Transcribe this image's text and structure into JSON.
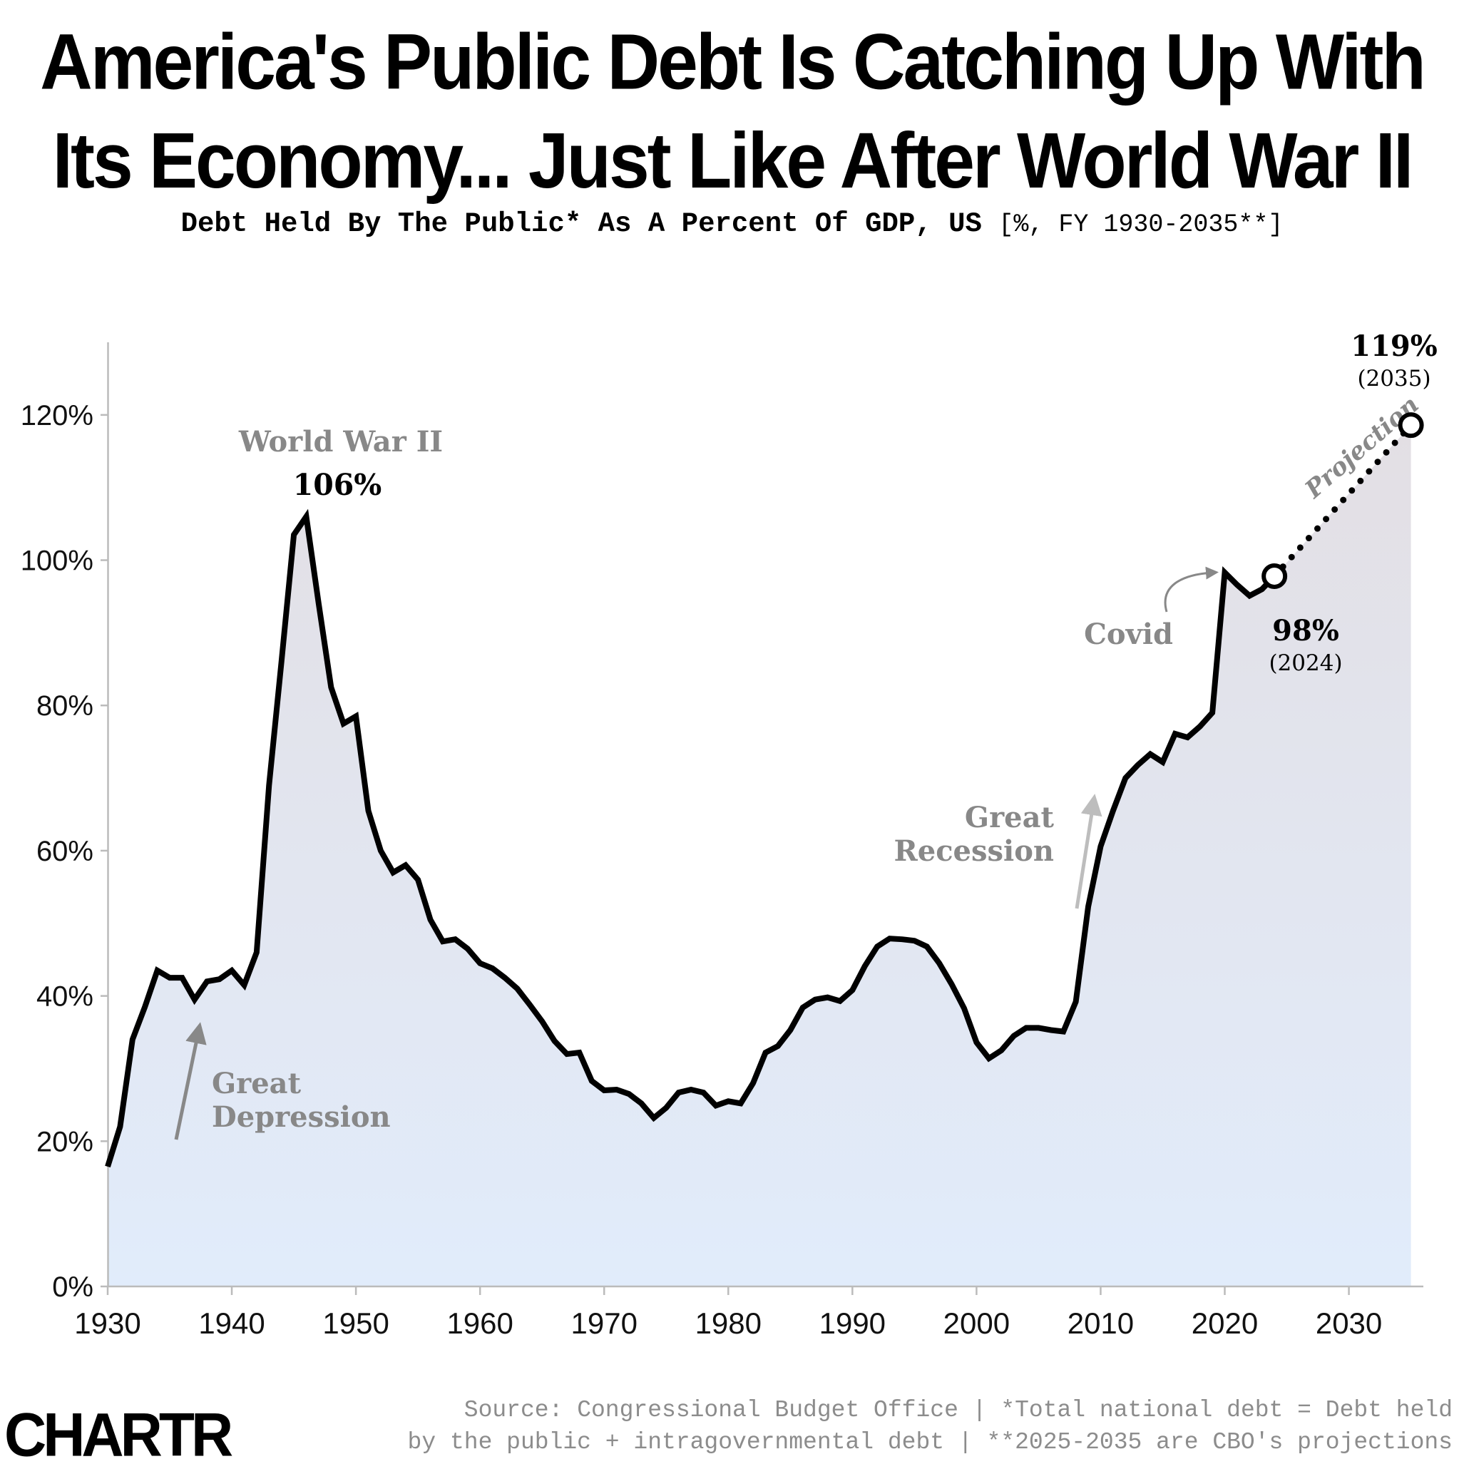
{
  "title_line1": "America's Public Debt Is Catching Up With",
  "title_line2": "Its Economy... Just Like After World War II",
  "subtitle_main": "Debt Held By The Public* As A Percent Of GDP, US",
  "subtitle_unit": "[%, FY 1930-2035**]",
  "source_line1": "Source: Congressional Budget Office | *Total national debt = Debt held",
  "source_line2": "by the public + intragovernmental debt | **2025-2035 are CBO's projections",
  "logo": "CHARTR",
  "colors": {
    "line": "#000000",
    "annotation": "#888888",
    "arrow_light": "#bdbdbd",
    "fill_top": "#e3dfe4",
    "fill_bottom": "#e1ecfb",
    "axis": "#bbbbbb"
  },
  "chart_data": {
    "type": "line",
    "title": "America's Public Debt Is Catching Up With Its Economy... Just Like After World War II",
    "subtitle": "Debt Held By The Public* As A Percent Of GDP, US [%, FY 1930-2035**]",
    "xlim": [
      1930,
      2036
    ],
    "ylim": [
      0,
      130
    ],
    "x_ticks": [
      1930,
      1940,
      1950,
      1960,
      1970,
      1980,
      1990,
      2000,
      2010,
      2020,
      2030
    ],
    "y_ticks": [
      0,
      20,
      40,
      60,
      80,
      100,
      120
    ],
    "y_tick_labels": [
      "0%",
      "20%",
      "40%",
      "60%",
      "80%",
      "100%",
      "120%"
    ],
    "grid": false,
    "series": [
      {
        "style": "solid",
        "x": [
          1930,
          1931,
          1932,
          1933,
          1934,
          1935,
          1936,
          1937,
          1938,
          1939,
          1940,
          1941,
          1942,
          1943,
          1944,
          1945,
          1946,
          1947,
          1948,
          1949,
          1950,
          1951,
          1952,
          1953,
          1954,
          1955,
          1956,
          1957,
          1958,
          1959,
          1960,
          1961,
          1962,
          1963,
          1964,
          1965,
          1966,
          1967,
          1968,
          1969,
          1970,
          1971,
          1972,
          1973,
          1974,
          1975,
          1976,
          1977,
          1978,
          1979,
          1980,
          1981,
          1982,
          1983,
          1984,
          1985,
          1986,
          1987,
          1988,
          1989,
          1990,
          1991,
          1992,
          1993,
          1994,
          1995,
          1996,
          1997,
          1998,
          1999,
          2000,
          2001,
          2002,
          2003,
          2004,
          2005,
          2006,
          2007,
          2008,
          2009,
          2010,
          2011,
          2012,
          2013,
          2014,
          2015,
          2016,
          2017,
          2018,
          2019,
          2020,
          2021,
          2022,
          2023,
          2024
        ],
        "values": [
          16.5,
          22,
          34,
          38.5,
          43.5,
          42.5,
          42.5,
          39.5,
          42,
          42.3,
          43.5,
          41.5,
          46,
          69,
          86,
          103.5,
          106,
          94,
          82.5,
          77.5,
          78.5,
          65.5,
          60,
          57,
          58,
          56,
          50.5,
          47.5,
          47.8,
          46.5,
          44.5,
          43.8,
          42.5,
          41,
          38.8,
          36.5,
          33.8,
          32,
          32.2,
          28.3,
          27,
          27.1,
          26.5,
          25.2,
          23.2,
          24.6,
          26.7,
          27.1,
          26.7,
          24.9,
          25.5,
          25.2,
          28,
          32.2,
          33.1,
          35.3,
          38.4,
          39.5,
          39.8,
          39.3,
          40.8,
          44.1,
          46.8,
          47.9,
          47.8,
          47.6,
          46.8,
          44.5,
          41.6,
          38.3,
          33.6,
          31.4,
          32.5,
          34.5,
          35.6,
          35.6,
          35.3,
          35.1,
          39.2,
          52.3,
          60.6,
          65.5,
          70,
          71.8,
          73.3,
          72.2,
          76.1,
          75.6,
          77.1,
          79,
          98.3,
          96.6,
          95.1,
          96,
          97.8
        ]
      },
      {
        "style": "dotted",
        "name": "Projection",
        "x": [
          2024,
          2035
        ],
        "values": [
          97.8,
          118.6
        ]
      }
    ],
    "annotations": [
      {
        "text": "World War II",
        "x": 1946,
        "y": 106
      },
      {
        "text": "106%",
        "x": 1946,
        "y": 106
      },
      {
        "text": "Great Depression",
        "x": 1933,
        "y": 20
      },
      {
        "text": "Covid",
        "x": 2020,
        "y": 98
      },
      {
        "text": "Great Recession",
        "x": 2008,
        "y": 50
      },
      {
        "text": "98%",
        "sub": "(2024)",
        "x": 2024,
        "y": 98
      },
      {
        "text": "119%",
        "sub": "(2035)",
        "x": 2035,
        "y": 119
      },
      {
        "text": "Projection",
        "x": 2030,
        "y": 110
      }
    ],
    "labels": {
      "wwii_name": "World War II",
      "wwii_value": "106%",
      "depression_1": "Great",
      "depression_2": "Depression",
      "recession_1": "Great",
      "recession_2": "Recession",
      "covid": "Covid",
      "projection": "Projection",
      "end2024_value": "98%",
      "end2024_year": "(2024)",
      "end2035_value": "119%",
      "end2035_year": "(2035)"
    }
  }
}
